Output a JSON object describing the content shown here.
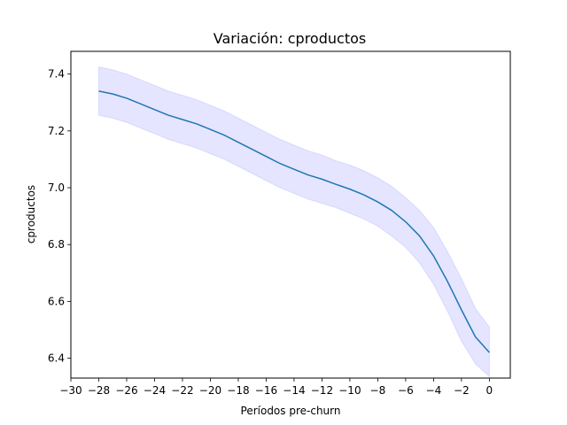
{
  "chart_data": {
    "type": "line",
    "title": "Variación: cproductos",
    "xlabel": "Períodos pre-churn",
    "ylabel": "cproductos",
    "xlim": [
      -30,
      1.5
    ],
    "ylim": [
      6.33,
      7.48
    ],
    "xticks": [
      -30,
      -28,
      -26,
      -24,
      -22,
      -20,
      -18,
      -16,
      -14,
      -12,
      -10,
      -8,
      -6,
      -4,
      -2,
      0
    ],
    "xtick_labels": [
      "−30",
      "−28",
      "−26",
      "−24",
      "−22",
      "−20",
      "−18",
      "−16",
      "−14",
      "−12",
      "−10",
      "−8",
      "−6",
      "−4",
      "−2",
      "0"
    ],
    "yticks": [
      6.4,
      6.6,
      6.8,
      7.0,
      7.2,
      7.4
    ],
    "ytick_labels": [
      "6.4",
      "6.6",
      "6.8",
      "7.0",
      "7.2",
      "7.4"
    ],
    "grid": false,
    "line_color": "#1f77b4",
    "band_color": "#0000ff",
    "series": [
      {
        "x": [
          -28,
          -27,
          -26,
          -25,
          -24,
          -23,
          -22,
          -21,
          -20,
          -19,
          -18,
          -17,
          -16,
          -15,
          -14,
          -13,
          -12,
          -11,
          -10,
          -9,
          -8,
          -7,
          -6,
          -5,
          -4,
          -3,
          -2,
          -1,
          0
        ],
        "y": [
          7.34,
          7.33,
          7.315,
          7.295,
          7.275,
          7.255,
          7.24,
          7.225,
          7.205,
          7.185,
          7.16,
          7.135,
          7.11,
          7.085,
          7.065,
          7.045,
          7.03,
          7.012,
          6.995,
          6.975,
          6.95,
          6.92,
          6.88,
          6.83,
          6.76,
          6.67,
          6.57,
          6.475,
          6.42
        ],
        "lower": [
          7.255,
          7.245,
          7.23,
          7.21,
          7.19,
          7.17,
          7.155,
          7.14,
          7.12,
          7.1,
          7.075,
          7.05,
          7.025,
          7.0,
          6.98,
          6.96,
          6.945,
          6.93,
          6.91,
          6.89,
          6.865,
          6.83,
          6.79,
          6.735,
          6.66,
          6.565,
          6.46,
          6.38,
          6.335
        ],
        "upper": [
          7.425,
          7.415,
          7.4,
          7.38,
          7.36,
          7.34,
          7.325,
          7.31,
          7.29,
          7.27,
          7.245,
          7.22,
          7.195,
          7.17,
          7.15,
          7.13,
          7.115,
          7.095,
          7.08,
          7.06,
          7.035,
          7.005,
          6.965,
          6.92,
          6.86,
          6.775,
          6.68,
          6.575,
          6.51
        ]
      }
    ]
  }
}
